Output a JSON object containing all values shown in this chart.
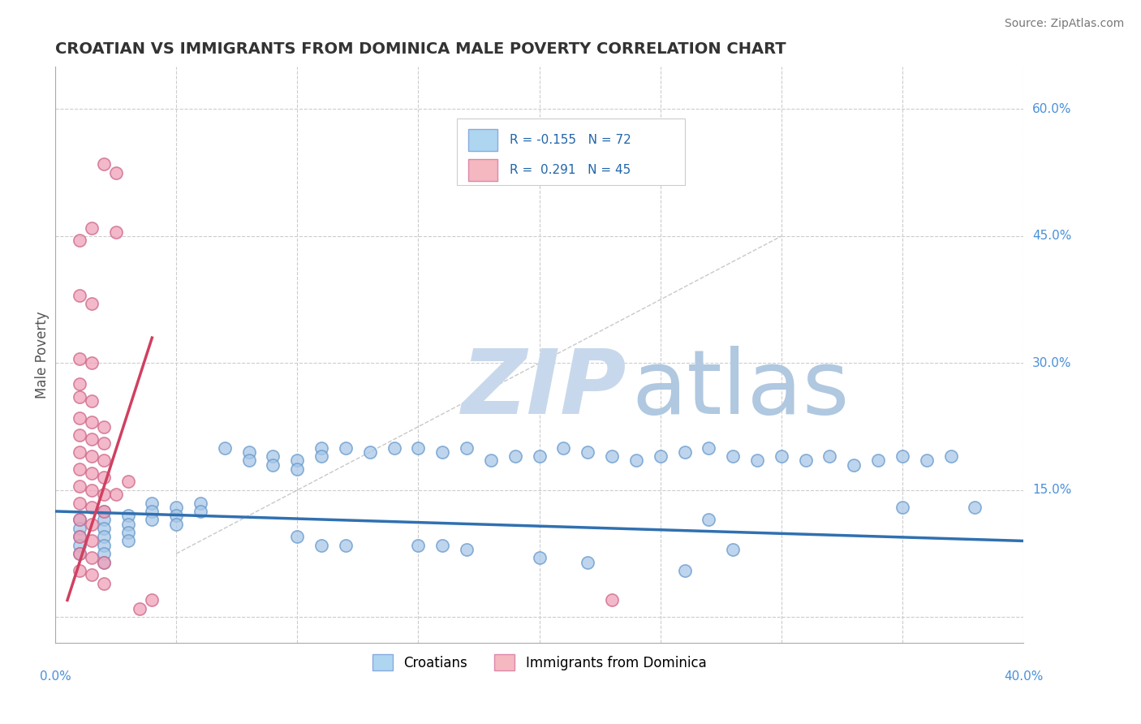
{
  "title": "CROATIAN VS IMMIGRANTS FROM DOMINICA MALE POVERTY CORRELATION CHART",
  "source": "Source: ZipAtlas.com",
  "ylabel": "Male Poverty",
  "xlim": [
    0.0,
    0.4
  ],
  "ylim": [
    -0.03,
    0.65
  ],
  "yticks": [
    0.0,
    0.15,
    0.3,
    0.45,
    0.6
  ],
  "ytick_labels": [
    "",
    "15.0%",
    "30.0%",
    "45.0%",
    "60.0%"
  ],
  "croatians_R": -0.155,
  "croatians_N": 72,
  "dominica_R": 0.291,
  "dominica_N": 45,
  "blue_color": "#A8C8E8",
  "pink_color": "#F0A0B8",
  "blue_line_color": "#3070B0",
  "pink_line_color": "#D04060",
  "scatter_blue": [
    [
      0.01,
      0.115
    ],
    [
      0.01,
      0.105
    ],
    [
      0.01,
      0.095
    ],
    [
      0.01,
      0.085
    ],
    [
      0.01,
      0.075
    ],
    [
      0.02,
      0.125
    ],
    [
      0.02,
      0.115
    ],
    [
      0.02,
      0.105
    ],
    [
      0.02,
      0.095
    ],
    [
      0.02,
      0.085
    ],
    [
      0.02,
      0.075
    ],
    [
      0.02,
      0.065
    ],
    [
      0.03,
      0.12
    ],
    [
      0.03,
      0.11
    ],
    [
      0.03,
      0.1
    ],
    [
      0.03,
      0.09
    ],
    [
      0.04,
      0.135
    ],
    [
      0.04,
      0.125
    ],
    [
      0.04,
      0.115
    ],
    [
      0.05,
      0.13
    ],
    [
      0.05,
      0.12
    ],
    [
      0.05,
      0.11
    ],
    [
      0.06,
      0.135
    ],
    [
      0.06,
      0.125
    ],
    [
      0.07,
      0.2
    ],
    [
      0.08,
      0.195
    ],
    [
      0.08,
      0.185
    ],
    [
      0.09,
      0.19
    ],
    [
      0.09,
      0.18
    ],
    [
      0.1,
      0.185
    ],
    [
      0.1,
      0.175
    ],
    [
      0.11,
      0.2
    ],
    [
      0.11,
      0.19
    ],
    [
      0.12,
      0.2
    ],
    [
      0.13,
      0.195
    ],
    [
      0.14,
      0.2
    ],
    [
      0.15,
      0.2
    ],
    [
      0.16,
      0.195
    ],
    [
      0.17,
      0.2
    ],
    [
      0.18,
      0.185
    ],
    [
      0.19,
      0.19
    ],
    [
      0.2,
      0.19
    ],
    [
      0.21,
      0.2
    ],
    [
      0.22,
      0.195
    ],
    [
      0.23,
      0.19
    ],
    [
      0.24,
      0.185
    ],
    [
      0.25,
      0.19
    ],
    [
      0.26,
      0.195
    ],
    [
      0.27,
      0.2
    ],
    [
      0.28,
      0.19
    ],
    [
      0.29,
      0.185
    ],
    [
      0.3,
      0.19
    ],
    [
      0.31,
      0.185
    ],
    [
      0.32,
      0.19
    ],
    [
      0.33,
      0.18
    ],
    [
      0.34,
      0.185
    ],
    [
      0.35,
      0.19
    ],
    [
      0.36,
      0.185
    ],
    [
      0.37,
      0.19
    ],
    [
      0.1,
      0.095
    ],
    [
      0.11,
      0.085
    ],
    [
      0.12,
      0.085
    ],
    [
      0.15,
      0.085
    ],
    [
      0.16,
      0.085
    ],
    [
      0.17,
      0.08
    ],
    [
      0.2,
      0.07
    ],
    [
      0.22,
      0.065
    ],
    [
      0.26,
      0.055
    ],
    [
      0.27,
      0.115
    ],
    [
      0.28,
      0.08
    ],
    [
      0.35,
      0.13
    ],
    [
      0.38,
      0.13
    ]
  ],
  "scatter_pink": [
    [
      0.02,
      0.535
    ],
    [
      0.025,
      0.525
    ],
    [
      0.015,
      0.46
    ],
    [
      0.025,
      0.455
    ],
    [
      0.01,
      0.445
    ],
    [
      0.01,
      0.38
    ],
    [
      0.015,
      0.37
    ],
    [
      0.01,
      0.305
    ],
    [
      0.015,
      0.3
    ],
    [
      0.01,
      0.275
    ],
    [
      0.01,
      0.26
    ],
    [
      0.015,
      0.255
    ],
    [
      0.01,
      0.235
    ],
    [
      0.015,
      0.23
    ],
    [
      0.02,
      0.225
    ],
    [
      0.01,
      0.215
    ],
    [
      0.015,
      0.21
    ],
    [
      0.02,
      0.205
    ],
    [
      0.01,
      0.195
    ],
    [
      0.015,
      0.19
    ],
    [
      0.02,
      0.185
    ],
    [
      0.01,
      0.175
    ],
    [
      0.015,
      0.17
    ],
    [
      0.02,
      0.165
    ],
    [
      0.01,
      0.155
    ],
    [
      0.015,
      0.15
    ],
    [
      0.02,
      0.145
    ],
    [
      0.01,
      0.135
    ],
    [
      0.015,
      0.13
    ],
    [
      0.02,
      0.125
    ],
    [
      0.01,
      0.115
    ],
    [
      0.015,
      0.11
    ],
    [
      0.01,
      0.095
    ],
    [
      0.015,
      0.09
    ],
    [
      0.01,
      0.075
    ],
    [
      0.015,
      0.07
    ],
    [
      0.02,
      0.065
    ],
    [
      0.01,
      0.055
    ],
    [
      0.015,
      0.05
    ],
    [
      0.02,
      0.04
    ],
    [
      0.03,
      0.16
    ],
    [
      0.025,
      0.145
    ],
    [
      0.04,
      0.02
    ],
    [
      0.23,
      0.02
    ],
    [
      0.035,
      0.01
    ]
  ],
  "watermark_zip_color": "#C8D8EC",
  "watermark_atlas_color": "#B0C8E0",
  "legend_box_blue": "#AED6F1",
  "legend_box_pink": "#F5B7C0",
  "blue_trend": [
    0.0,
    0.125,
    0.4,
    0.09
  ],
  "pink_trend": [
    0.005,
    0.02,
    0.04,
    0.33
  ],
  "diag_line": [
    0.05,
    0.075,
    0.3,
    0.45
  ]
}
